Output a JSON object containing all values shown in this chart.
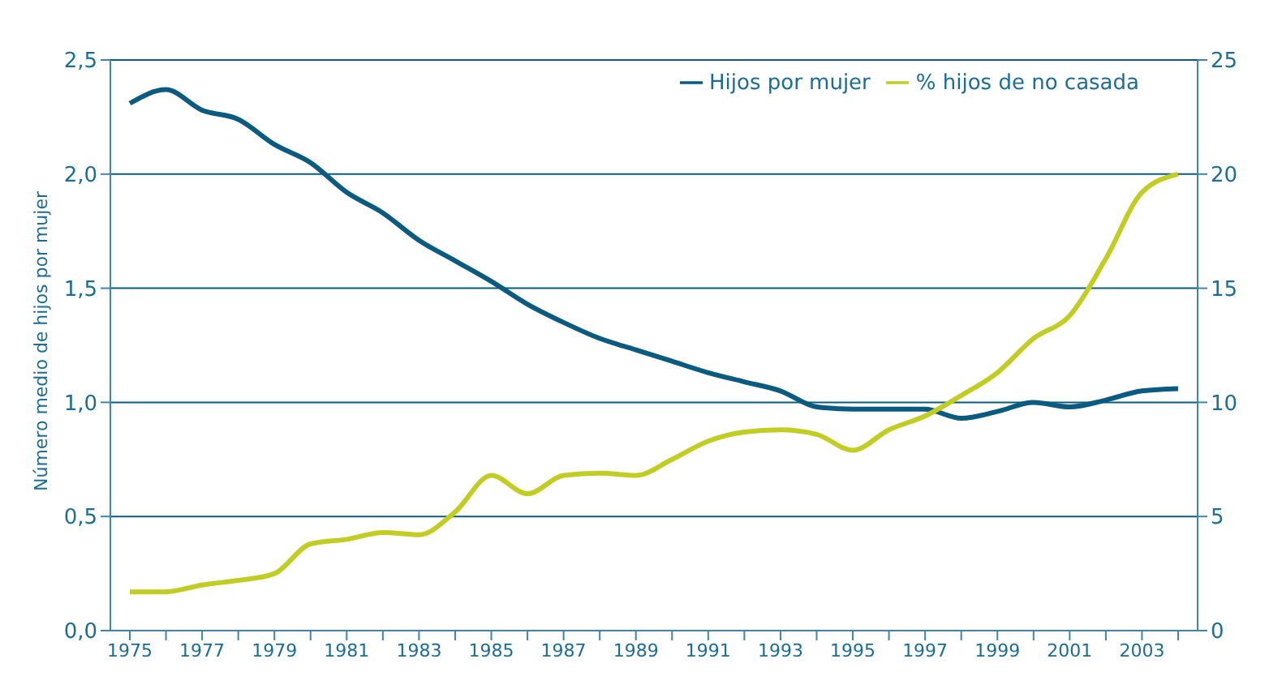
{
  "chart_data": {
    "type": "line",
    "ylabel": "Número medio de hijos por mujer",
    "categories": [
      "1975",
      null,
      "1977",
      null,
      "1979",
      null,
      "1981",
      null,
      "1983",
      null,
      "1985",
      null,
      "1987",
      null,
      "1989",
      null,
      "1991",
      null,
      "1993",
      null,
      "1995",
      null,
      "1997",
      null,
      "1999",
      null,
      "2001",
      null,
      "2003",
      null
    ],
    "series": [
      {
        "name": "Hijos por mujer",
        "color": "#0b5a80",
        "values": [
          2.31,
          2.37,
          2.28,
          2.24,
          2.13,
          2.05,
          1.92,
          1.83,
          1.71,
          1.62,
          1.53,
          1.43,
          1.35,
          1.28,
          1.23,
          1.18,
          1.13,
          1.09,
          1.05,
          0.98,
          0.97,
          0.97,
          0.97,
          0.93,
          0.96,
          1.0,
          0.98,
          1.01,
          1.05,
          1.06
        ]
      },
      {
        "name": "% hijos de no casada",
        "color": "#c2cd23",
        "axis": "y2",
        "values": [
          1.7,
          1.7,
          2.0,
          2.2,
          2.5,
          3.8,
          4.0,
          4.3,
          4.2,
          5.2,
          6.8,
          6.0,
          6.8,
          6.9,
          6.8,
          7.5,
          8.3,
          8.7,
          8.8,
          8.6,
          7.9,
          8.8,
          9.4,
          10.3,
          11.3,
          12.8,
          13.8,
          16.3,
          19.2,
          20.0
        ]
      }
    ],
    "ylim": [
      0,
      2.5
    ],
    "yticks": [
      {
        "value": 0,
        "label": "0,0"
      },
      {
        "value": 0.5,
        "label": "0,5"
      },
      {
        "value": 1,
        "label": "1,0"
      },
      {
        "value": 1.5,
        "label": "1,5"
      },
      {
        "value": 2,
        "label": "2,0"
      },
      {
        "value": 2.5,
        "label": "2,5"
      }
    ],
    "y2lim": [
      0,
      25
    ],
    "y2ticks": [
      0,
      5,
      10,
      15,
      20,
      25
    ],
    "grid": "y",
    "legend": "top right",
    "marker": "none",
    "line_style": "solid"
  }
}
